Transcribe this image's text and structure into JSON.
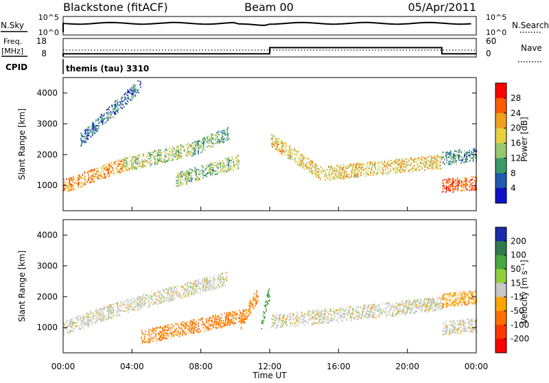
{
  "header": {
    "station": "Blackstone (fitACF)",
    "beam": "Beam 00",
    "date": "05/Apr/2011"
  },
  "left_labels": {
    "nsky": "N.Sky",
    "freq_top": "Freq.",
    "freq_bottom": "[MHz]",
    "cpid": "CPID"
  },
  "right_labels": {
    "nsearch": "N.Search",
    "nave": "Nave"
  },
  "noise_ticks": {
    "left": [
      "10^5",
      "10^0"
    ],
    "right": [
      "10^5",
      "10^0"
    ]
  },
  "freq_ticks": {
    "left": [
      "18",
      "8"
    ],
    "right": [
      "60",
      "0"
    ]
  },
  "cpid_text": "themis (tau) 3310",
  "y_axis_title": "Slant Range [km]",
  "x_axis_title": "Time UT",
  "x_ticks": [
    "00:00",
    "04:00",
    "08:00",
    "12:00",
    "16:00",
    "20:00",
    "00:00"
  ],
  "y_ticks": [
    "4000",
    "3000",
    "2000",
    "1000"
  ],
  "power_colorbar": {
    "label": "Power [dB]",
    "ticks": [
      "28",
      "24",
      "20",
      "16",
      "12",
      "8",
      "4"
    ],
    "colors": [
      "#ff0000",
      "#ff5a00",
      "#f0a020",
      "#e8d040",
      "#98c870",
      "#3a9a6a",
      "#205ab0",
      "#1010c8"
    ]
  },
  "velocity_colorbar": {
    "label": "Velocity [m s⁻¹]",
    "ticks": [
      "200",
      "100",
      "50",
      "15",
      "-15",
      "-50",
      "-100",
      "-200"
    ],
    "colors": [
      "#1a2aa8",
      "#2f7a50",
      "#46a83e",
      "#90d040",
      "#c8c8c8",
      "#ffa400",
      "#ff7000",
      "#ff3800",
      "#ff0000"
    ]
  },
  "chart_data": [
    {
      "type": "line",
      "title": "N.Sky / N.Search",
      "x_range_hours": [
        0,
        24
      ],
      "y_scale": "log",
      "ylim": [
        "10^0",
        "10^5"
      ],
      "sky_noise_level": "~10^3 roughly constant"
    },
    {
      "type": "line",
      "title": "Freq. [MHz] / Nave",
      "x_range_hours": [
        0,
        24
      ],
      "freq_series": [
        {
          "t_start": 0.0,
          "t_end": 12.0,
          "freq_mhz": 10
        },
        {
          "t_start": 12.0,
          "t_end": 22.0,
          "freq_mhz": 15
        },
        {
          "t_start": 22.0,
          "t_end": 24.0,
          "freq_mhz": 10
        }
      ],
      "nave_approx": 20
    },
    {
      "type": "heatmap",
      "title": "Power [dB]",
      "x": "Time UT (hours)",
      "y": "Slant Range [km]",
      "xlim": [
        0,
        24
      ],
      "ylim": [
        180,
        4500
      ],
      "scale": [
        0,
        30
      ],
      "bands": [
        {
          "t0": 0.0,
          "t1": 3.5,
          "r_start": 1000,
          "r_end": 1700,
          "power_mid": 22
        },
        {
          "t0": 3.5,
          "t1": 7.5,
          "r_start": 1700,
          "r_end": 2200,
          "power_mid": 14
        },
        {
          "t0": 7.5,
          "t1": 9.6,
          "r_start": 2200,
          "r_end": 2700,
          "power_mid": 10
        },
        {
          "t0": 6.5,
          "t1": 10.2,
          "r_start": 1200,
          "r_end": 1800,
          "power_mid": 12
        },
        {
          "t0": 1.0,
          "t1": 4.5,
          "r_start": 2500,
          "r_end": 4300,
          "power_mid": 6
        },
        {
          "t0": 12.0,
          "t1": 15.0,
          "r_start": 2500,
          "r_end": 1400,
          "power_mid": 18
        },
        {
          "t0": 15.0,
          "t1": 22.0,
          "r_start": 1400,
          "r_end": 1800,
          "power_mid": 18
        },
        {
          "t0": 22.0,
          "t1": 24.0,
          "r_start": 1000,
          "r_end": 1100,
          "power_mid": 26
        },
        {
          "t0": 22.0,
          "t1": 24.0,
          "r_start": 1900,
          "r_end": 2000,
          "power_mid": 8
        }
      ]
    },
    {
      "type": "heatmap",
      "title": "Velocity [m s-1]",
      "x": "Time UT (hours)",
      "y": "Slant Range [km]",
      "xlim": [
        0,
        24
      ],
      "ylim": [
        180,
        4500
      ],
      "scale": [
        -250,
        250
      ],
      "bands": [
        {
          "t0": 0.0,
          "t1": 3.5,
          "r_start": 1000,
          "r_end": 1700,
          "velocity": 0
        },
        {
          "t0": 3.5,
          "t1": 9.5,
          "r_start": 1700,
          "r_end": 2600,
          "velocity": 0
        },
        {
          "t0": 4.5,
          "t1": 10.5,
          "r_start": 700,
          "r_end": 1400,
          "velocity": -60
        },
        {
          "t0": 10.3,
          "t1": 11.3,
          "r_start": 1200,
          "r_end": 2100,
          "velocity": -60
        },
        {
          "t0": 11.5,
          "t1": 12.0,
          "r_start": 1200,
          "r_end": 2200,
          "velocity": 60
        },
        {
          "t0": 12.0,
          "t1": 22.0,
          "r_start": 1200,
          "r_end": 1800,
          "velocity": 0
        },
        {
          "t0": 22.0,
          "t1": 24.0,
          "r_start": 1000,
          "r_end": 1100,
          "velocity": 0
        },
        {
          "t0": 22.0,
          "t1": 24.0,
          "r_start": 1900,
          "r_end": 2000,
          "velocity": -40
        }
      ]
    }
  ]
}
